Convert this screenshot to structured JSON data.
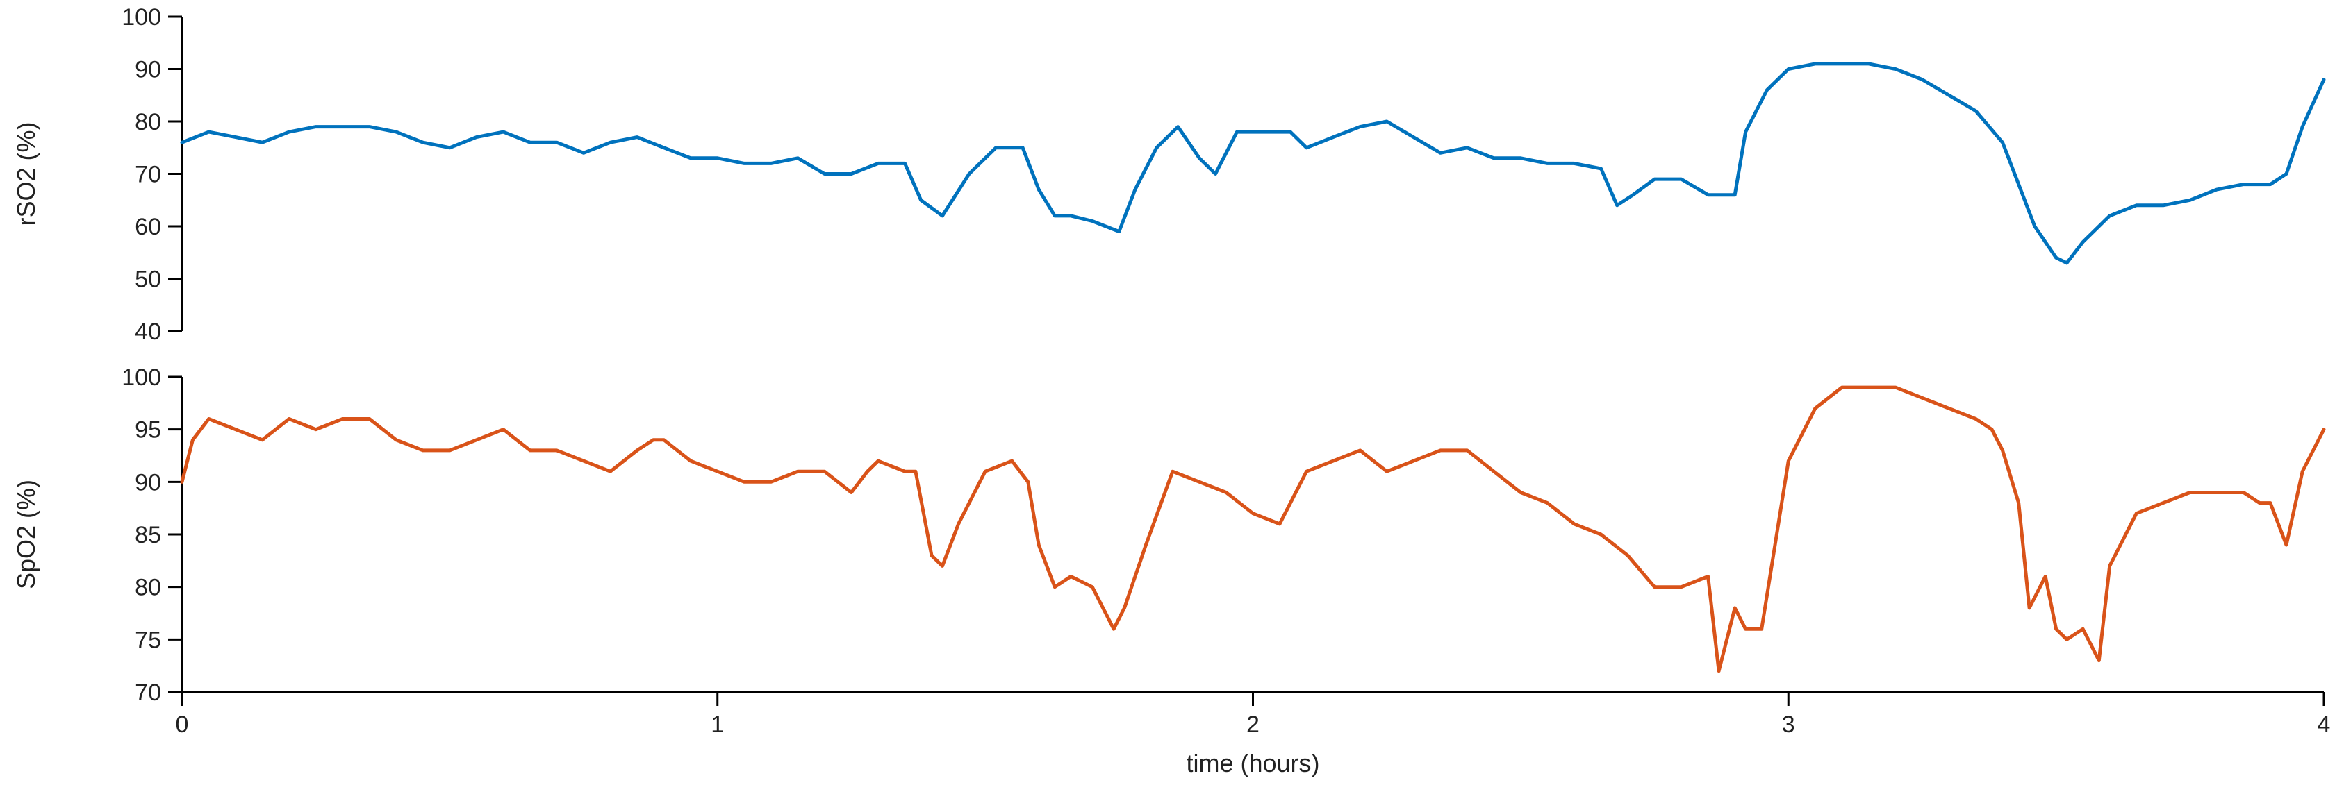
{
  "chart_data": [
    {
      "type": "line",
      "ylabel": "rSO2 (%)",
      "ylim": [
        40,
        100
      ],
      "yticks": [
        40,
        50,
        60,
        70,
        80,
        90,
        100
      ],
      "xlim": [
        0,
        4
      ],
      "grid": false,
      "series": [
        {
          "color": "#0072BD",
          "x": [
            0,
            0.05,
            0.1,
            0.15,
            0.2,
            0.25,
            0.3,
            0.35,
            0.4,
            0.45,
            0.5,
            0.55,
            0.6,
            0.65,
            0.7,
            0.75,
            0.8,
            0.85,
            0.9,
            0.95,
            1.0,
            1.05,
            1.1,
            1.15,
            1.2,
            1.25,
            1.3,
            1.35,
            1.38,
            1.42,
            1.47,
            1.52,
            1.57,
            1.6,
            1.63,
            1.66,
            1.7,
            1.75,
            1.78,
            1.82,
            1.86,
            1.9,
            1.93,
            1.97,
            2.02,
            2.07,
            2.1,
            2.15,
            2.2,
            2.25,
            2.3,
            2.35,
            2.4,
            2.45,
            2.5,
            2.55,
            2.6,
            2.65,
            2.68,
            2.71,
            2.75,
            2.8,
            2.85,
            2.9,
            2.92,
            2.96,
            3.0,
            3.05,
            3.1,
            3.15,
            3.2,
            3.25,
            3.3,
            3.35,
            3.4,
            3.43,
            3.46,
            3.5,
            3.52,
            3.55,
            3.6,
            3.65,
            3.7,
            3.75,
            3.8,
            3.85,
            3.9,
            3.93,
            3.96,
            4.0
          ],
          "values": [
            76,
            78,
            77,
            76,
            78,
            79,
            79,
            79,
            78,
            76,
            75,
            77,
            78,
            76,
            76,
            74,
            76,
            77,
            75,
            73,
            73,
            72,
            72,
            73,
            70,
            70,
            72,
            72,
            65,
            62,
            70,
            75,
            75,
            67,
            62,
            62,
            61,
            59,
            67,
            75,
            79,
            73,
            70,
            78,
            78,
            78,
            75,
            77,
            79,
            80,
            77,
            74,
            75,
            73,
            73,
            72,
            72,
            71,
            64,
            66,
            69,
            69,
            66,
            66,
            78,
            86,
            90,
            91,
            91,
            91,
            90,
            88,
            85,
            82,
            76,
            68,
            60,
            54,
            53,
            57,
            62,
            64,
            64,
            65,
            67,
            68,
            68,
            70,
            79,
            88
          ]
        }
      ]
    },
    {
      "type": "line",
      "ylabel": "SpO2 (%)",
      "ylim": [
        70,
        100
      ],
      "yticks": [
        70,
        75,
        80,
        85,
        90,
        95,
        100
      ],
      "xlabel": "time (hours)",
      "xlim": [
        0,
        4
      ],
      "xticks": [
        0,
        1,
        2,
        3,
        4
      ],
      "grid": false,
      "series": [
        {
          "color": "#D95319",
          "x": [
            0,
            0.02,
            0.05,
            0.1,
            0.15,
            0.2,
            0.25,
            0.3,
            0.35,
            0.4,
            0.45,
            0.5,
            0.55,
            0.6,
            0.65,
            0.7,
            0.75,
            0.8,
            0.85,
            0.88,
            0.9,
            0.95,
            1.0,
            1.05,
            1.1,
            1.15,
            1.2,
            1.25,
            1.28,
            1.3,
            1.35,
            1.37,
            1.4,
            1.42,
            1.45,
            1.5,
            1.55,
            1.58,
            1.6,
            1.63,
            1.66,
            1.7,
            1.74,
            1.76,
            1.8,
            1.85,
            1.9,
            1.95,
            2.0,
            2.05,
            2.1,
            2.15,
            2.2,
            2.25,
            2.3,
            2.35,
            2.4,
            2.45,
            2.5,
            2.55,
            2.6,
            2.65,
            2.7,
            2.75,
            2.8,
            2.85,
            2.87,
            2.9,
            2.92,
            2.95,
            3.0,
            3.05,
            3.1,
            3.15,
            3.2,
            3.25,
            3.3,
            3.35,
            3.38,
            3.4,
            3.43,
            3.45,
            3.48,
            3.5,
            3.52,
            3.55,
            3.58,
            3.6,
            3.65,
            3.7,
            3.75,
            3.8,
            3.85,
            3.88,
            3.9,
            3.93,
            3.96,
            4.0
          ],
          "values": [
            90,
            94,
            96,
            95,
            94,
            96,
            95,
            96,
            96,
            94,
            93,
            93,
            94,
            95,
            93,
            93,
            92,
            91,
            93,
            94,
            94,
            92,
            91,
            90,
            90,
            91,
            91,
            89,
            91,
            92,
            91,
            91,
            83,
            82,
            86,
            91,
            92,
            90,
            84,
            80,
            81,
            80,
            76,
            78,
            84,
            91,
            90,
            89,
            87,
            86,
            91,
            92,
            93,
            91,
            92,
            93,
            93,
            91,
            89,
            88,
            86,
            85,
            83,
            80,
            80,
            81,
            72,
            78,
            76,
            76,
            92,
            97,
            99,
            99,
            99,
            98,
            97,
            96,
            95,
            93,
            88,
            78,
            81,
            76,
            75,
            76,
            73,
            82,
            87,
            88,
            89,
            89,
            89,
            88,
            88,
            84,
            91,
            95
          ]
        }
      ]
    }
  ]
}
